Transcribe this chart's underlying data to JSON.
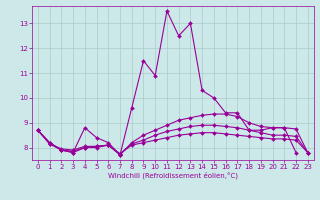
{
  "title": "",
  "xlabel": "Windchill (Refroidissement éolien,°C)",
  "ylabel": "",
  "background_color": "#cce8e8",
  "line_color": "#990099",
  "grid_color": "#aacccc",
  "x_values": [
    0,
    1,
    2,
    3,
    4,
    5,
    6,
    7,
    8,
    9,
    10,
    11,
    12,
    13,
    14,
    15,
    16,
    17,
    18,
    19,
    20,
    21,
    22,
    23
  ],
  "series1": [
    8.7,
    8.2,
    7.9,
    7.8,
    8.8,
    8.4,
    8.2,
    7.7,
    9.6,
    11.5,
    10.9,
    13.5,
    12.5,
    13.0,
    10.3,
    10.0,
    9.4,
    9.4,
    8.7,
    8.7,
    8.8,
    8.8,
    7.8,
    null
  ],
  "series2": [
    8.7,
    8.2,
    7.9,
    7.8,
    8.0,
    8.0,
    8.1,
    7.7,
    8.2,
    8.5,
    8.7,
    8.9,
    9.1,
    9.2,
    9.3,
    9.35,
    9.35,
    9.25,
    9.0,
    8.85,
    8.8,
    8.8,
    8.75,
    7.8
  ],
  "series3": [
    8.7,
    8.15,
    7.9,
    7.85,
    8.0,
    8.05,
    8.1,
    7.75,
    8.15,
    8.3,
    8.5,
    8.65,
    8.75,
    8.85,
    8.9,
    8.9,
    8.85,
    8.8,
    8.7,
    8.6,
    8.5,
    8.5,
    8.45,
    7.8
  ],
  "series4": [
    8.7,
    8.15,
    7.95,
    7.9,
    8.05,
    8.05,
    8.1,
    7.75,
    8.1,
    8.2,
    8.3,
    8.4,
    8.5,
    8.55,
    8.6,
    8.6,
    8.55,
    8.5,
    8.45,
    8.4,
    8.35,
    8.35,
    8.3,
    7.8
  ],
  "ylim": [
    7.5,
    13.7
  ],
  "yticks": [
    8,
    9,
    10,
    11,
    12,
    13
  ],
  "xticks": [
    0,
    1,
    2,
    3,
    4,
    5,
    6,
    7,
    8,
    9,
    10,
    11,
    12,
    13,
    14,
    15,
    16,
    17,
    18,
    19,
    20,
    21,
    22,
    23
  ]
}
